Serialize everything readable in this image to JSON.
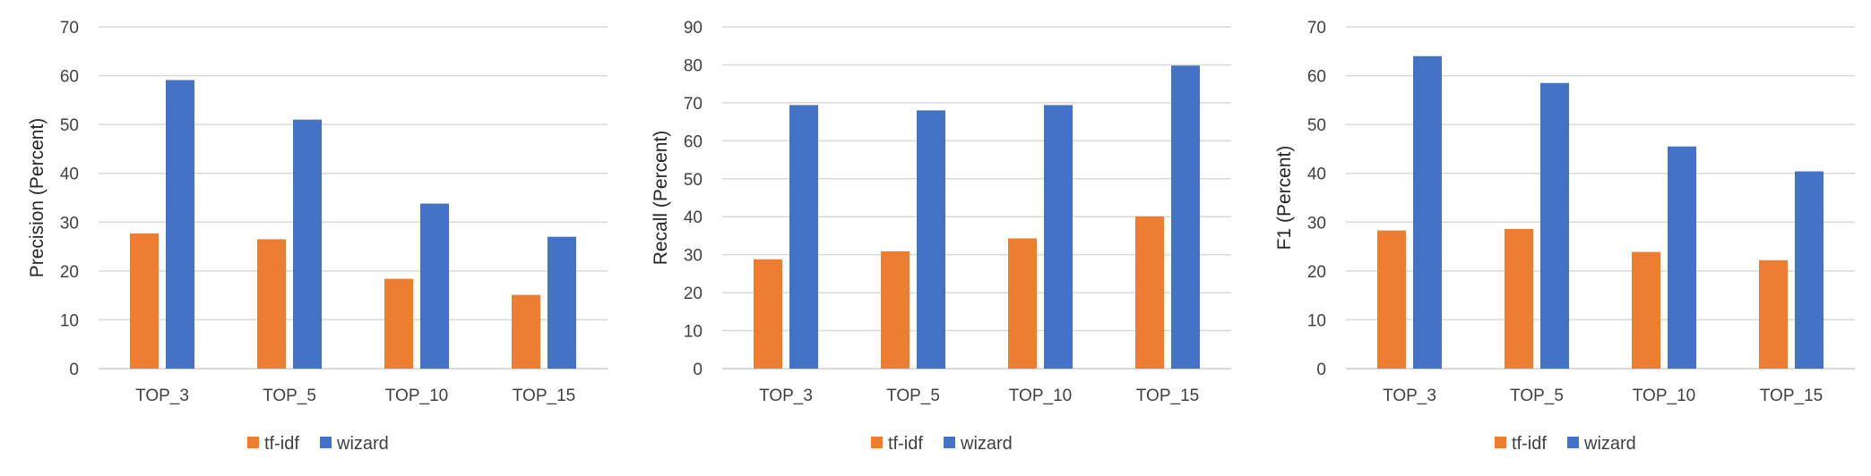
{
  "chart_data": [
    {
      "type": "bar",
      "title": "",
      "xlabel": "",
      "ylabel": "Precision (Percent)",
      "ylim": [
        0,
        70
      ],
      "yticks": [
        0,
        10,
        20,
        30,
        40,
        50,
        60,
        70
      ],
      "grid": true,
      "legend_position": "bottom",
      "categories": [
        "TOP_3",
        "TOP_5",
        "TOP_10",
        "TOP_15"
      ],
      "series": [
        {
          "name": "tf-idf",
          "color": "#ED7D31",
          "values": [
            27.7,
            26.5,
            18.4,
            15.1
          ]
        },
        {
          "name": "wizard",
          "color": "#4472C4",
          "values": [
            59.1,
            51.0,
            33.8,
            27.0
          ]
        }
      ]
    },
    {
      "type": "bar",
      "title": "",
      "xlabel": "",
      "ylabel": "Recall (Percent)",
      "ylim": [
        0,
        90
      ],
      "yticks": [
        0,
        10,
        20,
        30,
        40,
        50,
        60,
        70,
        80,
        90
      ],
      "grid": true,
      "legend_position": "bottom",
      "categories": [
        "TOP_3",
        "TOP_5",
        "TOP_10",
        "TOP_15"
      ],
      "series": [
        {
          "name": "tf-idf",
          "color": "#ED7D31",
          "values": [
            28.8,
            30.9,
            34.3,
            40.1
          ]
        },
        {
          "name": "wizard",
          "color": "#4472C4",
          "values": [
            69.4,
            68.0,
            69.4,
            79.8
          ]
        }
      ]
    },
    {
      "type": "bar",
      "title": "",
      "xlabel": "",
      "ylabel": "F1 (Percent)",
      "ylim": [
        0,
        70
      ],
      "yticks": [
        0,
        10,
        20,
        30,
        40,
        50,
        60,
        70
      ],
      "grid": true,
      "legend_position": "bottom",
      "categories": [
        "TOP_3",
        "TOP_5",
        "TOP_10",
        "TOP_15"
      ],
      "series": [
        {
          "name": "tf-idf",
          "color": "#ED7D31",
          "values": [
            28.3,
            28.6,
            23.9,
            22.2
          ]
        },
        {
          "name": "wizard",
          "color": "#4472C4",
          "values": [
            64.0,
            58.5,
            45.5,
            40.4
          ]
        }
      ]
    }
  ],
  "style": {
    "gridline_color": "#D9D9D9",
    "text_color": "#404040"
  }
}
